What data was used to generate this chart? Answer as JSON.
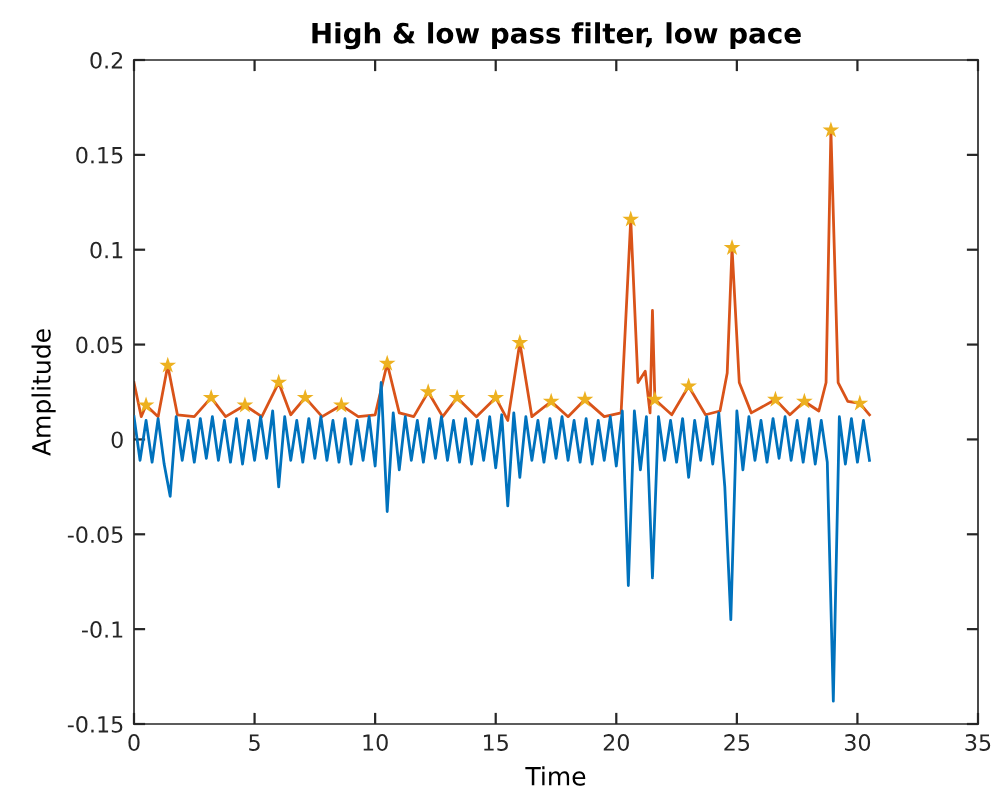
{
  "chart_data": {
    "type": "line",
    "title": "High & low pass filter, low pace",
    "xlabel": "Time",
    "ylabel": "Amplitude",
    "xlim": [
      0,
      35
    ],
    "xticks": [
      0,
      5,
      10,
      15,
      20,
      25,
      30,
      35
    ],
    "ylim": [
      -0.15,
      0.2
    ],
    "yticks": [
      -0.15,
      -0.1,
      -0.05,
      0,
      0.05,
      0.1,
      0.15,
      0.2
    ],
    "grid": false,
    "legend": false,
    "series": [
      {
        "color": "#d95319",
        "x": [
          0,
          0.3,
          0.5,
          1.0,
          1.4,
          1.8,
          2.5,
          3.2,
          3.8,
          4.6,
          5.3,
          6.0,
          6.5,
          7.1,
          7.8,
          8.6,
          9.3,
          10.0,
          10.5,
          11.0,
          11.6,
          12.2,
          12.8,
          13.4,
          14.2,
          15.0,
          15.5,
          16.0,
          16.5,
          17.3,
          18.0,
          18.7,
          19.5,
          20.2,
          20.6,
          20.9,
          21.2,
          21.4,
          21.5,
          21.6,
          22.3,
          23.0,
          23.7,
          24.3,
          24.6,
          24.8,
          25.1,
          25.6,
          26.6,
          27.2,
          27.8,
          28.4,
          28.7,
          28.9,
          29.2,
          29.6,
          30.1,
          30.5
        ],
        "values": [
          0.03,
          0.012,
          0.018,
          0.012,
          0.039,
          0.013,
          0.012,
          0.022,
          0.012,
          0.018,
          0.012,
          0.03,
          0.013,
          0.022,
          0.012,
          0.018,
          0.012,
          0.013,
          0.04,
          0.014,
          0.012,
          0.025,
          0.012,
          0.022,
          0.012,
          0.022,
          0.01,
          0.051,
          0.012,
          0.02,
          0.012,
          0.021,
          0.012,
          0.014,
          0.116,
          0.03,
          0.036,
          0.014,
          0.068,
          0.021,
          0.013,
          0.028,
          0.013,
          0.015,
          0.035,
          0.101,
          0.03,
          0.014,
          0.021,
          0.013,
          0.02,
          0.015,
          0.03,
          0.163,
          0.03,
          0.02,
          0.019,
          0.013
        ]
      },
      {
        "color": "#0072bd",
        "x": [
          0,
          0.25,
          0.5,
          0.75,
          1,
          1.25,
          1.5,
          1.75,
          2,
          2.25,
          2.5,
          2.75,
          3,
          3.25,
          3.5,
          3.75,
          4,
          4.25,
          4.5,
          4.75,
          5,
          5.25,
          5.5,
          5.75,
          6,
          6.25,
          6.5,
          6.75,
          7,
          7.25,
          7.5,
          7.75,
          8,
          8.25,
          8.5,
          8.75,
          9,
          9.25,
          9.5,
          9.75,
          10,
          10.25,
          10.5,
          10.75,
          11,
          11.25,
          11.5,
          11.75,
          12,
          12.25,
          12.5,
          12.75,
          13,
          13.25,
          13.5,
          13.75,
          14,
          14.25,
          14.5,
          14.75,
          15,
          15.25,
          15.5,
          15.75,
          16,
          16.25,
          16.5,
          16.75,
          17,
          17.25,
          17.5,
          17.75,
          18,
          18.25,
          18.5,
          18.75,
          19,
          19.25,
          19.5,
          19.75,
          20,
          20.25,
          20.5,
          20.75,
          21,
          21.25,
          21.5,
          21.75,
          22,
          22.25,
          22.5,
          22.75,
          23,
          23.25,
          23.5,
          23.75,
          24,
          24.25,
          24.5,
          24.75,
          25,
          25.25,
          25.5,
          25.75,
          26,
          26.25,
          26.5,
          26.75,
          27,
          27.25,
          27.5,
          27.75,
          28,
          28.25,
          28.5,
          28.75,
          29,
          29.25,
          29.5,
          29.75,
          30,
          30.25,
          30.5
        ],
        "values": [
          0.012,
          -0.011,
          0.01,
          -0.012,
          0.011,
          -0.013,
          -0.03,
          0.012,
          -0.011,
          0.01,
          -0.012,
          0.011,
          -0.01,
          0.012,
          -0.011,
          0.01,
          -0.012,
          0.011,
          -0.013,
          0.01,
          -0.011,
          0.012,
          -0.01,
          0.015,
          -0.025,
          0.012,
          -0.011,
          0.01,
          -0.012,
          0.011,
          -0.01,
          0.012,
          -0.011,
          0.01,
          -0.012,
          0.011,
          -0.013,
          0.01,
          -0.011,
          0.012,
          -0.014,
          0.03,
          -0.038,
          0.014,
          -0.016,
          0.012,
          -0.011,
          0.01,
          -0.012,
          0.011,
          -0.01,
          0.012,
          -0.011,
          0.01,
          -0.012,
          0.011,
          -0.013,
          0.01,
          -0.011,
          0.012,
          -0.015,
          0.013,
          -0.035,
          0.014,
          -0.02,
          0.012,
          -0.011,
          0.01,
          -0.012,
          0.011,
          -0.01,
          0.012,
          -0.011,
          0.01,
          -0.012,
          0.011,
          -0.013,
          0.01,
          -0.011,
          0.012,
          -0.014,
          0.015,
          -0.077,
          0.015,
          -0.016,
          0.012,
          -0.073,
          0.012,
          -0.011,
          0.01,
          -0.012,
          0.011,
          -0.02,
          0.01,
          -0.011,
          0.012,
          -0.013,
          0.014,
          -0.025,
          -0.095,
          0.015,
          -0.016,
          0.012,
          -0.011,
          0.01,
          -0.012,
          0.011,
          -0.01,
          0.012,
          -0.011,
          0.01,
          -0.012,
          0.011,
          -0.013,
          0.01,
          -0.012,
          -0.138,
          0.012,
          -0.013,
          0.011,
          -0.012,
          0.01,
          -0.011
        ]
      },
      {
        "type": "scatter",
        "color": "#edb120",
        "marker": "star",
        "x": [
          0.5,
          1.4,
          3.2,
          4.6,
          6.0,
          7.1,
          8.6,
          10.5,
          12.2,
          13.4,
          15.0,
          16.0,
          17.3,
          18.7,
          20.6,
          21.6,
          23.0,
          24.8,
          26.6,
          27.8,
          28.9,
          30.1
        ],
        "values": [
          0.018,
          0.039,
          0.022,
          0.018,
          0.03,
          0.022,
          0.018,
          0.04,
          0.025,
          0.022,
          0.022,
          0.051,
          0.02,
          0.021,
          0.116,
          0.021,
          0.028,
          0.101,
          0.021,
          0.02,
          0.163,
          0.019
        ]
      }
    ]
  }
}
